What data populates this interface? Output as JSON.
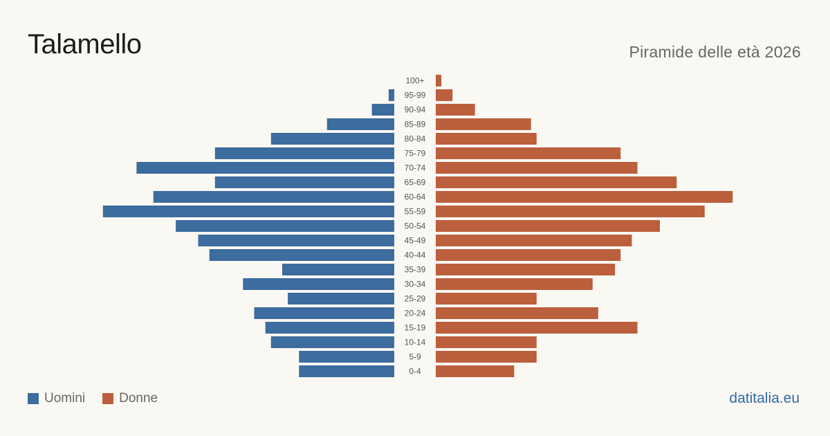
{
  "header": {
    "title": "Talamello",
    "subtitle": "Piramide delle età 2026"
  },
  "legend": {
    "men_label": "Uomini",
    "women_label": "Donne"
  },
  "brand": "datitalia.eu",
  "colors": {
    "men": "#3d6c9e",
    "women": "#bb5f3d",
    "background": "#faf8f3"
  },
  "chart_data": {
    "type": "bar",
    "orientation": "horizontal-pyramid",
    "categories": [
      "100+",
      "95-99",
      "90-94",
      "85-89",
      "80-84",
      "75-79",
      "70-74",
      "65-69",
      "60-64",
      "55-59",
      "50-54",
      "45-49",
      "40-44",
      "35-39",
      "30-34",
      "25-29",
      "20-24",
      "15-19",
      "10-14",
      "5-9",
      "0-4"
    ],
    "series": [
      {
        "name": "Uomini",
        "values": [
          0,
          1,
          4,
          12,
          22,
          32,
          46,
          32,
          43,
          52,
          39,
          35,
          33,
          20,
          27,
          19,
          25,
          23,
          22,
          17,
          17
        ]
      },
      {
        "name": "Donne",
        "values": [
          1,
          3,
          7,
          17,
          18,
          33,
          36,
          43,
          53,
          48,
          40,
          35,
          33,
          32,
          28,
          18,
          29,
          36,
          18,
          18,
          14
        ]
      }
    ],
    "grid": false,
    "legend_position": "bottom-left"
  }
}
